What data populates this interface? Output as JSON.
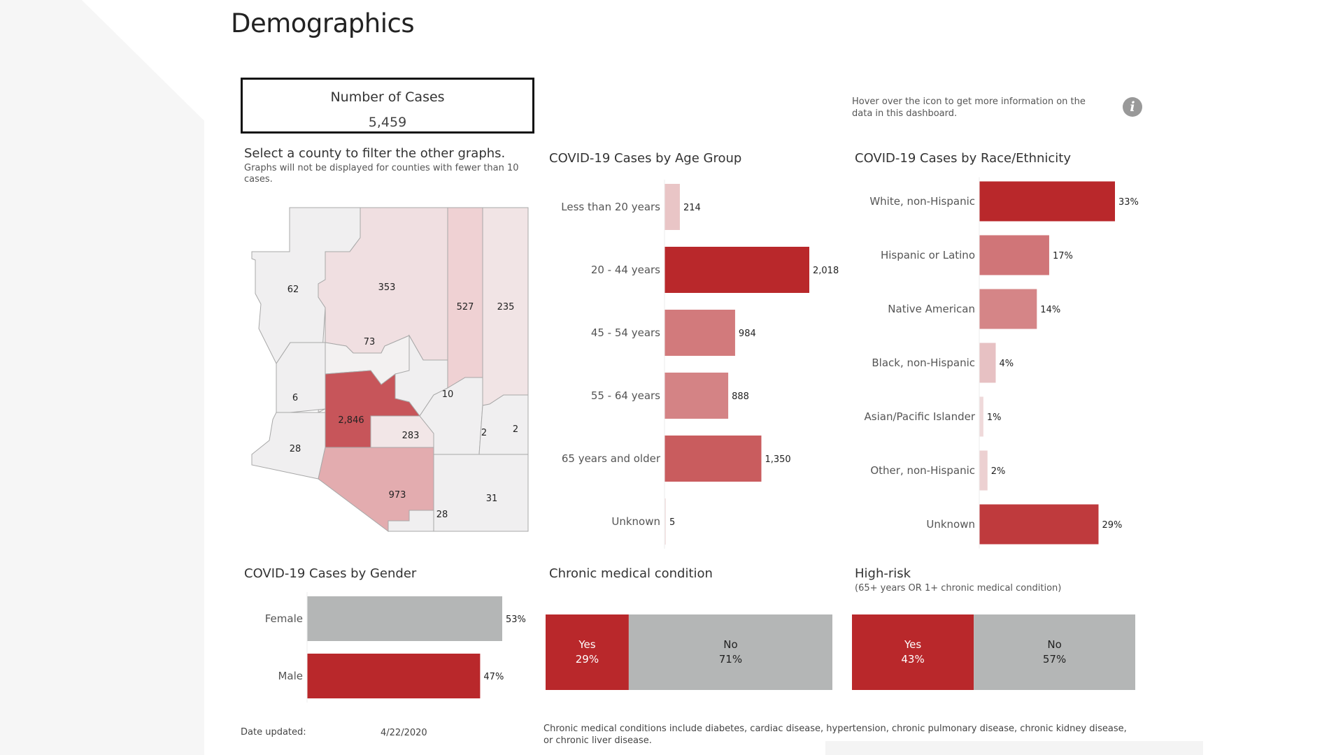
{
  "page": {
    "title": "Demographics",
    "kpi": {
      "label": "Number of Cases",
      "value": "5,459"
    },
    "hint": "Hover over the icon to get more information on the data in this dashboard.",
    "info_icon": "info-icon",
    "map_title": "Select a county to filter the other graphs.",
    "map_sub": "Graphs will not be displayed for counties with fewer than 10 cases.",
    "date_label": "Date updated:",
    "date_value": "4/22/2020",
    "footnote": "Chronic medical conditions include diabetes, cardiac disease, hypertension, chronic pulmonary disease, chronic kidney disease, or chronic liver disease."
  },
  "colors": {
    "dark_red": "#b9282b",
    "gray": "#b4b6b6",
    "map_outline": "#a8a8a8",
    "low": "#f0eff0"
  },
  "county_map": {
    "counts": [
      "62",
      "353",
      "527",
      "235",
      "73",
      "6",
      "10",
      "2,846",
      "283",
      "2",
      "2",
      "28",
      "973",
      "31",
      "28"
    ]
  },
  "chart_data": [
    {
      "type": "bar",
      "orientation": "horizontal",
      "title": "COVID-19 Cases by Age Group",
      "categories": [
        "Less than 20 years",
        "20 - 44 years",
        "45 - 54 years",
        "55 - 64 years",
        "65 years and older",
        "Unknown"
      ],
      "values": [
        214,
        2018,
        984,
        888,
        1350,
        5
      ],
      "labels": [
        "214",
        "2,018",
        "984",
        "888",
        "1,350",
        "5"
      ],
      "xlim": [
        0,
        2018
      ]
    },
    {
      "type": "bar",
      "orientation": "horizontal",
      "title": "COVID-19 Cases by Race/Ethnicity",
      "categories": [
        "White, non-Hispanic",
        "Hispanic or Latino",
        "Native American",
        "Black, non-Hispanic",
        "Asian/Pacific Islander",
        "Other, non-Hispanic",
        "Unknown"
      ],
      "values": [
        33,
        17,
        14,
        4,
        1,
        2,
        29
      ],
      "labels": [
        "33%",
        "17%",
        "14%",
        "4%",
        "1%",
        "2%",
        "29%"
      ],
      "xlim": [
        0,
        33
      ]
    },
    {
      "type": "bar",
      "orientation": "horizontal",
      "title": "COVID-19 Cases by Gender",
      "categories": [
        "Female",
        "Male"
      ],
      "values": [
        53,
        47
      ],
      "labels": [
        "53%",
        "47%"
      ],
      "colors": [
        "#b4b6b6",
        "#b9282b"
      ],
      "xlim": [
        0,
        53
      ]
    },
    {
      "type": "bar",
      "orientation": "stacked-horizontal",
      "title": "Chronic medical condition",
      "categories": [
        "Yes",
        "No"
      ],
      "values": [
        29,
        71
      ],
      "labels": [
        "29%",
        "71%"
      ],
      "colors": [
        "#b9282b",
        "#b4b6b6"
      ]
    },
    {
      "type": "bar",
      "orientation": "stacked-horizontal",
      "title": "High-risk",
      "subtitle": "(65+ years OR 1+ chronic medical condition)",
      "categories": [
        "Yes",
        "No"
      ],
      "values": [
        43,
        57
      ],
      "labels": [
        "43%",
        "57%"
      ],
      "colors": [
        "#b9282b",
        "#b4b6b6"
      ]
    }
  ]
}
